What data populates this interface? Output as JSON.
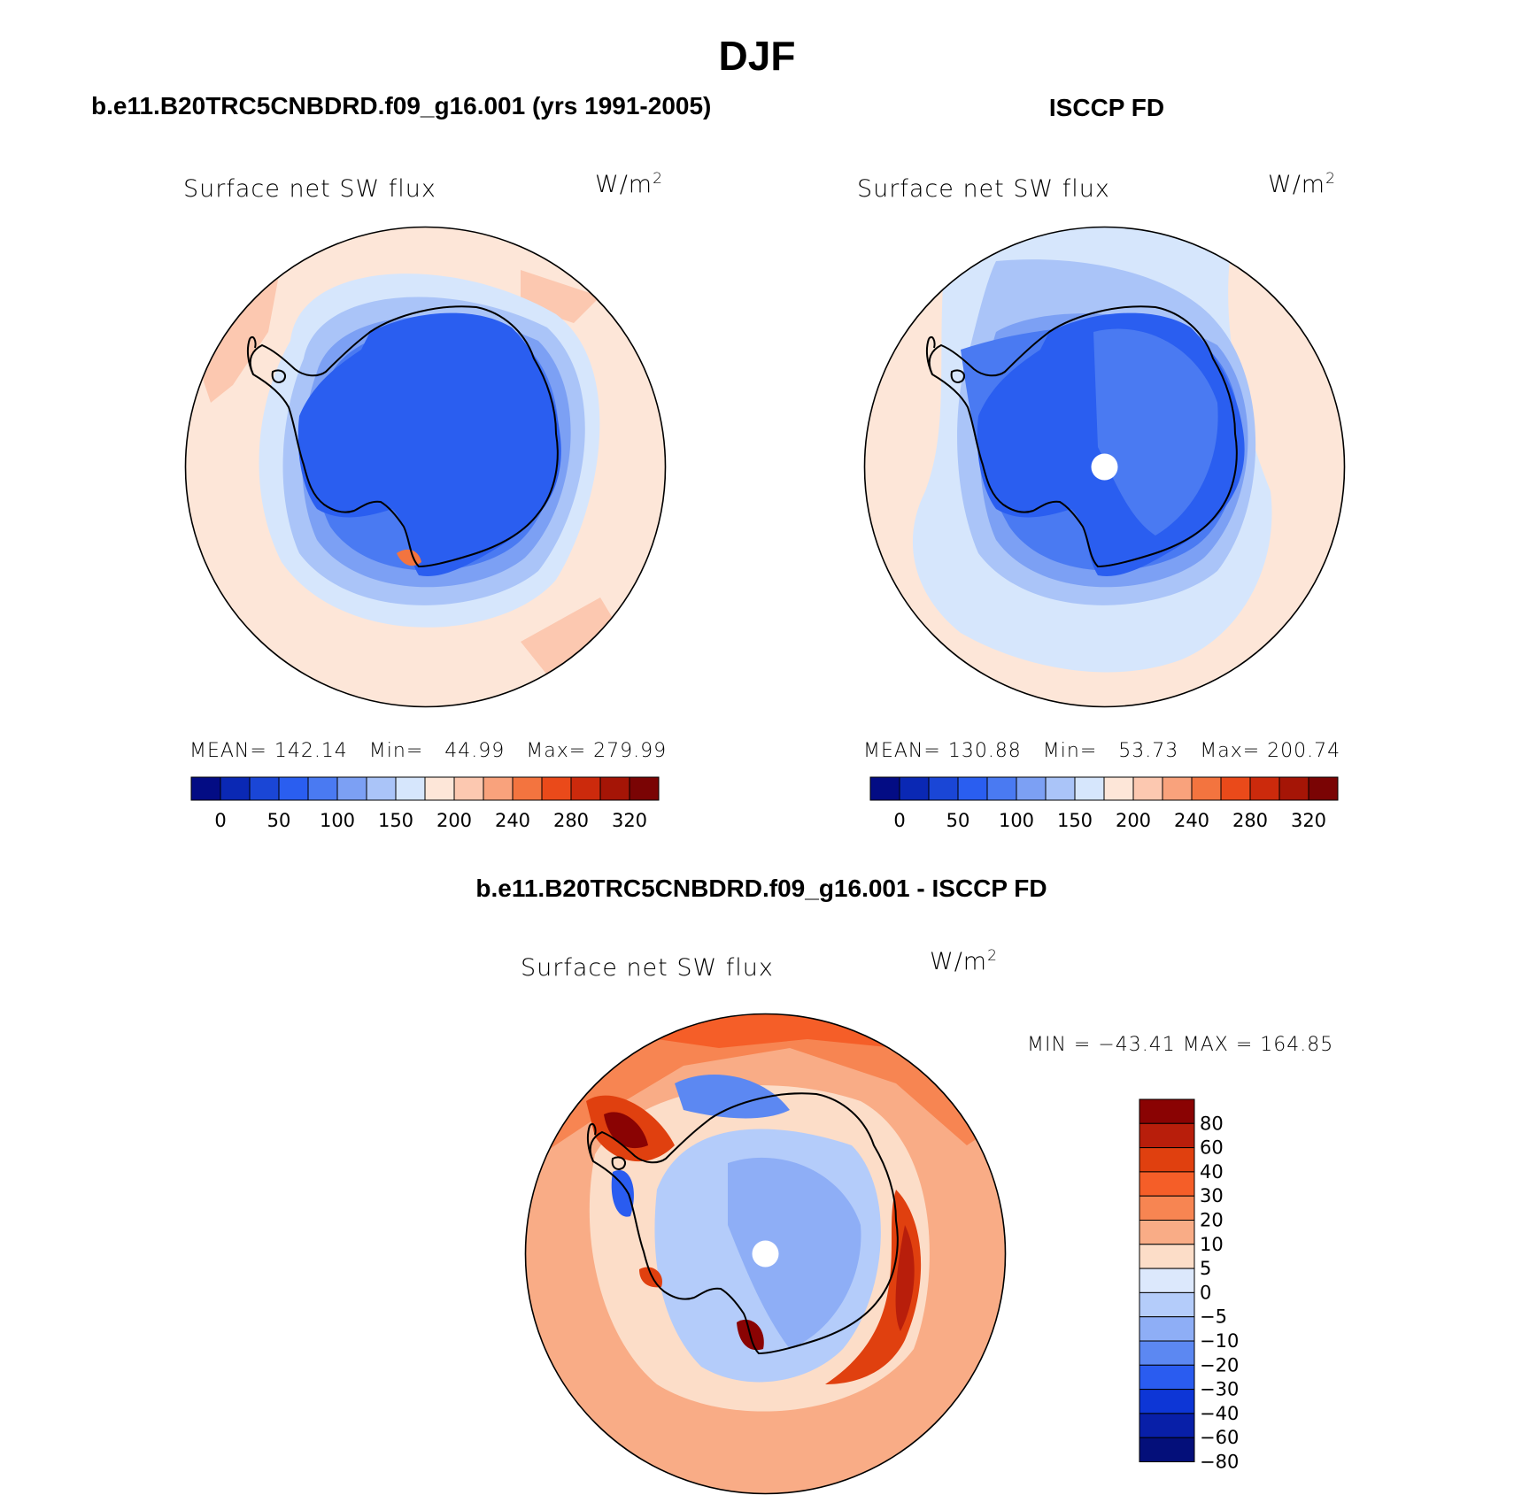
{
  "page_title": "DJF",
  "panels": [
    {
      "id": "model",
      "heading": "b.e11.B20TRC5CNBDRD.f09_g16.001 (yrs 1991-2005)",
      "variable": "Surface net SW flux",
      "units_base": "W/m",
      "units_exp": "2",
      "stats": {
        "mean_label": "MEAN=",
        "mean": "142.14",
        "min_label": "Min=",
        "min": "44.99",
        "max_label": "Max=",
        "max": "279.99"
      }
    },
    {
      "id": "obs",
      "heading": "ISCCP FD",
      "variable": "Surface net SW flux",
      "units_base": "W/m",
      "units_exp": "2",
      "stats": {
        "mean_label": "MEAN=",
        "mean": "130.88",
        "min_label": "Min=",
        "min": "53.73",
        "max_label": "Max=",
        "max": "200.74"
      }
    },
    {
      "id": "diff",
      "heading": "b.e11.B20TRC5CNBDRD.f09_g16.001 - ISCCP FD",
      "variable": "Surface net SW flux",
      "units_base": "W/m",
      "units_exp": "2",
      "stats_text": "MIN = −43.41 MAX = 164.85"
    }
  ],
  "colorbar_abs": {
    "colors": [
      "#030c84",
      "#0a28b4",
      "#1a46d6",
      "#2a5ef0",
      "#4a7af2",
      "#7ca0f4",
      "#aac4f8",
      "#d6e6fc",
      "#fde6d8",
      "#fcc8b0",
      "#f9a27c",
      "#f3743f",
      "#ea4a1a",
      "#cc2a0c",
      "#a51506",
      "#7a0404"
    ],
    "ticks": [
      "0",
      "50",
      "100",
      "150",
      "200",
      "240",
      "280",
      "320"
    ]
  },
  "colorbar_diff": {
    "colors": [
      "#8a0303",
      "#b81e0b",
      "#e0400f",
      "#f55e28",
      "#f78552",
      "#f9ac86",
      "#fcddc8",
      "#dce8fc",
      "#b4ccfa",
      "#8eaef6",
      "#5c88f2",
      "#2a5cf0",
      "#0d36d6",
      "#081fa8",
      "#040f7a"
    ],
    "ticks": [
      "80",
      "60",
      "40",
      "30",
      "20",
      "10",
      "5",
      "0",
      "−5",
      "−10",
      "−20",
      "−30",
      "−40",
      "−60",
      "−80"
    ]
  },
  "chart_data": [
    {
      "type": "heatmap",
      "projection": "south-polar-stereographic",
      "title": "Surface net SW flux",
      "units": "W/m2",
      "levels": [
        0,
        25,
        50,
        75,
        100,
        125,
        150,
        175,
        200,
        220,
        240,
        260,
        280,
        300,
        320
      ],
      "mean": 142.14,
      "min": 44.99,
      "max": 279.99
    },
    {
      "type": "heatmap",
      "projection": "south-polar-stereographic",
      "title": "Surface net SW flux",
      "units": "W/m2",
      "levels": [
        0,
        25,
        50,
        75,
        100,
        125,
        150,
        175,
        200,
        220,
        240,
        260,
        280,
        300,
        320
      ],
      "mean": 130.88,
      "min": 53.73,
      "max": 200.74
    },
    {
      "type": "heatmap",
      "projection": "south-polar-stereographic",
      "title": "Surface net SW flux",
      "units": "W/m2",
      "levels": [
        -80,
        -60,
        -40,
        -30,
        -20,
        -10,
        -5,
        0,
        5,
        10,
        20,
        30,
        40,
        60,
        80
      ],
      "min": -43.41,
      "max": 164.85
    }
  ]
}
